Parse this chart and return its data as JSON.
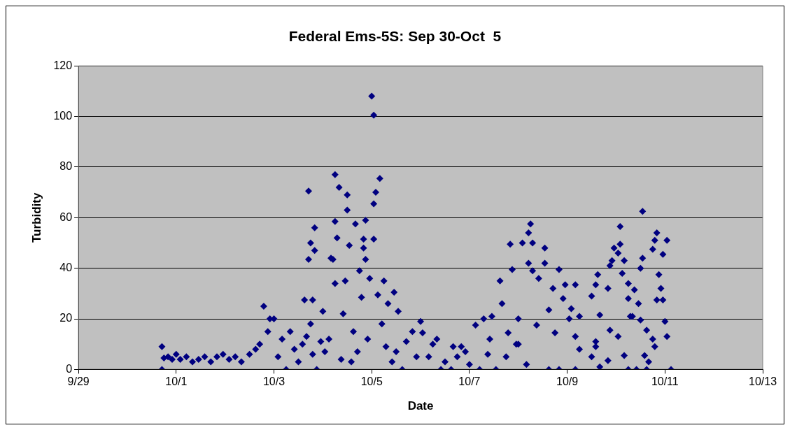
{
  "chart_data": {
    "type": "scatter",
    "title": "Federal Ems-5S: Sep 30-Oct  5",
    "xlabel": "Date",
    "ylabel": "Turbidity",
    "x": [
      "--09-30T17:00",
      "--09-30T17:00",
      "--09-30T18:00",
      "--09-30T20:00",
      "--09-30T22:00",
      "--10-01T00:00",
      "--10-01T02:00",
      "--10-01T05:00",
      "--10-01T08:00",
      "--10-01T11:00",
      "--10-01T14:00",
      "--10-01T17:00",
      "--10-01T20:00",
      "--10-01T23:00",
      "--10-02T02:00",
      "--10-02T05:00",
      "--10-02T08:00",
      "--10-02T12:00",
      "--10-02T15:00",
      "--10-02T17:00",
      "--10-02T19:00",
      "--10-02T21:00",
      "--10-02T22:00",
      "--10-03T00:00",
      "--10-03T02:00",
      "--10-03T04:00",
      "--10-03T06:00",
      "--10-03T08:00",
      "--10-03T10:00",
      "--10-03T12:00",
      "--10-03T14:00",
      "--10-03T15:00",
      "--10-03T16:00",
      "--10-03T17:00",
      "--10-03T17:00",
      "--10-03T18:00",
      "--10-03T18:00",
      "--10-03T19:00",
      "--10-03T19:00",
      "--10-03T20:00",
      "--10-03T20:00",
      "--10-03T21:00",
      "--10-03T23:00",
      "--10-04T00:00",
      "--10-04T01:00",
      "--10-04T03:00",
      "--10-04T04:00",
      "--10-04T05:00",
      "--10-04T06:00",
      "--10-04T06:00",
      "--10-04T06:00",
      "--10-04T07:00",
      "--10-04T08:00",
      "--10-04T09:00",
      "--10-04T10:00",
      "--10-04T11:00",
      "--10-04T12:00",
      "--10-04T12:00",
      "--10-04T13:00",
      "--10-04T14:00",
      "--10-04T15:00",
      "--10-04T16:00",
      "--10-04T17:00",
      "--10-04T18:00",
      "--10-04T19:00",
      "--10-04T20:00",
      "--10-04T20:00",
      "--10-04T21:00",
      "--10-04T21:00",
      "--10-04T22:00",
      "--10-04T23:00",
      "--10-05T00:00",
      "--10-05T01:00",
      "--10-05T01:00",
      "--10-05T01:00",
      "--10-05T02:00",
      "--10-05T03:00",
      "--10-05T04:00",
      "--10-05T05:00",
      "--10-05T06:00",
      "--10-05T07:00",
      "--10-05T08:00",
      "--10-05T10:00",
      "--10-05T11:00",
      "--10-05T12:00",
      "--10-05T13:00",
      "--10-05T15:00",
      "--10-05T17:00",
      "--10-05T20:00",
      "--10-05T22:00",
      "--10-06T00:00",
      "--10-06T01:00",
      "--10-06T04:00",
      "--10-06T06:00",
      "--10-06T08:00",
      "--10-06T10:00",
      "--10-06T12:00",
      "--10-06T15:00",
      "--10-06T16:00",
      "--10-06T18:00",
      "--10-06T20:00",
      "--10-06T22:00",
      "--10-07T00:00",
      "--10-07T03:00",
      "--10-07T05:00",
      "--10-07T07:00",
      "--10-07T09:00",
      "--10-07T10:00",
      "--10-07T11:00",
      "--10-07T13:00",
      "--10-07T15:00",
      "--10-07T16:00",
      "--10-07T18:00",
      "--10-07T19:00",
      "--10-07T20:00",
      "--10-07T21:00",
      "--10-07T23:00",
      "--10-08T00:00",
      "--10-08T00:00",
      "--10-08T02:00",
      "--10-08T04:00",
      "--10-08T05:00",
      "--10-08T05:00",
      "--10-08T06:00",
      "--10-08T07:00",
      "--10-08T07:00",
      "--10-08T09:00",
      "--10-08T10:00",
      "--10-08T13:00",
      "--10-08T13:00",
      "--10-08T15:00",
      "--10-08T15:00",
      "--10-08T17:00",
      "--10-08T18:00",
      "--10-08T20:00",
      "--10-08T20:00",
      "--10-08T22:00",
      "--10-08T23:00",
      "--10-09T01:00",
      "--10-09T02:00",
      "--10-09T04:00",
      "--10-09T04:00",
      "--10-09T04:00",
      "--10-09T06:00",
      "--10-09T06:00",
      "--10-09T12:00",
      "--10-09T12:00",
      "--10-09T14:00",
      "--10-09T14:00",
      "--10-09T14:00",
      "--10-09T15:00",
      "--10-09T16:00",
      "--10-09T16:00",
      "--10-09T20:00",
      "--10-09T20:00",
      "--10-09T21:00",
      "--10-09T21:00",
      "--10-09T22:00",
      "--10-09T23:00",
      "--10-10T01:00",
      "--10-10T01:00",
      "--10-10T02:00",
      "--10-10T02:00",
      "--10-10T03:00",
      "--10-10T04:00",
      "--10-10T04:00",
      "--10-10T06:00",
      "--10-10T06:00",
      "--10-10T06:00",
      "--10-10T07:00",
      "--10-10T08:00",
      "--10-10T09:00",
      "--10-10T10:00",
      "--10-10T11:00",
      "--10-10T12:00",
      "--10-10T12:00",
      "--10-10T13:00",
      "--10-10T13:00",
      "--10-10T14:00",
      "--10-10T15:00",
      "--10-10T15:00",
      "--10-10T16:00",
      "--10-10T18:00",
      "--10-10T18:00",
      "--10-10T19:00",
      "--10-10T19:00",
      "--10-10T20:00",
      "--10-10T20:00",
      "--10-10T21:00",
      "--10-10T22:00",
      "--10-10T23:00",
      "--10-10T23:00",
      "--10-11T00:00",
      "--10-11T01:00",
      "--10-11T01:00",
      "--10-11T03:00"
    ],
    "series": [
      {
        "color": "#000080",
        "values": [
          9,
          0,
          4.5,
          5,
          4,
          6,
          4,
          5,
          3,
          4,
          5,
          3,
          5,
          6,
          4,
          5,
          3,
          6,
          8,
          10,
          25,
          15,
          20,
          20,
          5,
          12,
          0,
          15,
          8,
          3,
          10,
          27.5,
          13,
          70.5,
          43.5,
          50,
          18,
          27.5,
          6,
          56,
          47,
          0,
          11,
          23,
          7,
          12,
          44,
          43.5,
          77,
          58.5,
          34,
          52,
          72,
          4,
          22,
          35,
          69,
          63,
          49,
          3,
          15,
          57.5,
          7,
          39,
          28.5,
          51.5,
          48,
          59,
          43.5,
          12,
          36,
          108,
          100.5,
          65.5,
          51.5,
          70,
          29.5,
          75.5,
          18,
          35,
          9,
          26,
          3,
          30.5,
          7,
          23,
          0,
          11,
          15,
          5,
          19,
          14.5,
          5,
          10,
          12,
          0,
          3,
          0,
          9,
          5,
          9,
          7,
          2,
          17.5,
          0,
          20,
          6,
          12,
          21,
          0,
          35,
          26,
          5,
          14.5,
          49.5,
          39.5,
          10,
          20,
          10,
          50,
          2,
          54,
          42,
          57.5,
          39,
          50,
          17.5,
          36,
          48,
          42,
          23.5,
          0,
          32,
          14.5,
          39.5,
          0,
          28,
          33.5,
          20,
          24,
          33.5,
          13,
          0,
          21,
          8,
          29,
          5,
          33.5,
          11,
          9,
          37.5,
          21.5,
          1,
          32,
          3.5,
          41,
          15.5,
          43,
          48,
          46,
          13,
          56.5,
          49.5,
          38,
          43,
          5.5,
          34,
          28,
          0,
          21,
          21,
          31.5,
          0,
          26,
          19.5,
          40,
          62.5,
          44,
          5.5,
          15.5,
          0,
          3,
          47.5,
          12,
          51,
          9,
          54,
          27.5,
          37.5,
          32,
          45.5,
          27.5,
          19,
          51,
          13,
          0
        ]
      }
    ],
    "xlim": [
      "--09-29",
      "--10-13"
    ],
    "xticks": [
      {
        "value": "--09-29",
        "label": "9/29"
      },
      {
        "value": "--10-01",
        "label": "10/1"
      },
      {
        "value": "--10-03",
        "label": "10/3"
      },
      {
        "value": "--10-05",
        "label": "10/5"
      },
      {
        "value": "--10-07",
        "label": "10/7"
      },
      {
        "value": "--10-09",
        "label": "10/9"
      },
      {
        "value": "--10-11",
        "label": "10/11"
      },
      {
        "value": "--10-13",
        "label": "10/13"
      }
    ],
    "ylim": [
      0,
      120
    ],
    "yticks": [
      0,
      20,
      40,
      60,
      80,
      100,
      120
    ],
    "grid": "y",
    "legend": false,
    "marker": "diamond"
  }
}
